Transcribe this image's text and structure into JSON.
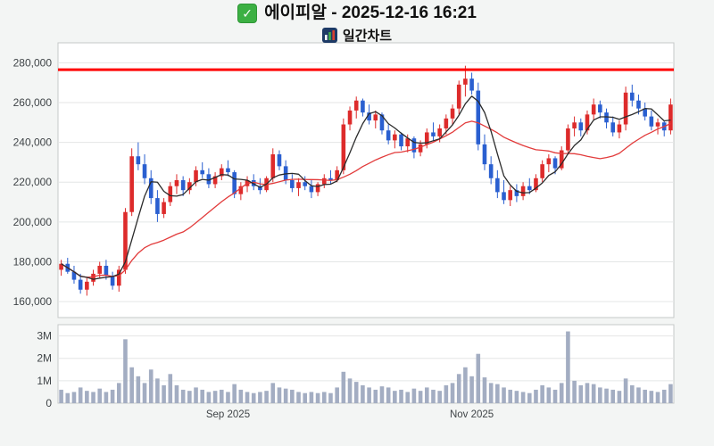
{
  "header": {
    "title": "에이피알 - 2025-12-16 16:21",
    "subtitle": "일간차트"
  },
  "icons": {
    "check_glyph": "✓",
    "bar_chart_icon_name": "bar-chart-icon"
  },
  "chart_data": {
    "type": "candlestick",
    "title": "에이피알 일간차트",
    "price_axis": {
      "min": 152000,
      "max": 290000,
      "ticks": [
        {
          "value": 280000,
          "label": "280,000"
        },
        {
          "value": 260000,
          "label": "260,000"
        },
        {
          "value": 240000,
          "label": "240,000"
        },
        {
          "value": 220000,
          "label": "220,000"
        },
        {
          "value": 200000,
          "label": "200,000"
        },
        {
          "value": 180000,
          "label": "180,000"
        },
        {
          "value": 160000,
          "label": "160,000"
        }
      ]
    },
    "volume_axis": {
      "min": 0,
      "max": 3.5,
      "unit": "M",
      "ticks": [
        {
          "value": 3,
          "label": "3M"
        },
        {
          "value": 2,
          "label": "2M"
        },
        {
          "value": 1,
          "label": "1M"
        },
        {
          "value": 0,
          "label": "0"
        }
      ]
    },
    "x_ticks": [
      {
        "index": 26,
        "label": "Sep 2025"
      },
      {
        "index": 64,
        "label": "Nov 2025"
      }
    ],
    "resistance_level": 276500,
    "moving_averages": {
      "fast_window": 5,
      "slow_window": 20
    },
    "colors": {
      "up": "#dd2b2b",
      "down": "#2a5fd0",
      "volume": "#a3adc2",
      "ma_fast": "#2b2b2b",
      "ma_slow": "#e23b3b",
      "resistance": "#ff0000",
      "grid": "#e4e6e6",
      "panel_border": "#c5c9c9",
      "panel_bg": "#ffffff",
      "axis_text": "#3f4447"
    },
    "columns": [
      "open",
      "high",
      "low",
      "close",
      "volume_millions"
    ],
    "candles": [
      [
        176000,
        181000,
        173000,
        179000,
        0.6
      ],
      [
        179000,
        182000,
        174000,
        175000,
        0.45
      ],
      [
        175000,
        178000,
        169000,
        171000,
        0.5
      ],
      [
        171000,
        174000,
        164000,
        166000,
        0.7
      ],
      [
        166000,
        172000,
        163000,
        170000,
        0.55
      ],
      [
        170000,
        176000,
        168000,
        174000,
        0.5
      ],
      [
        174000,
        180000,
        172000,
        178000,
        0.65
      ],
      [
        178000,
        181000,
        171000,
        173000,
        0.5
      ],
      [
        173000,
        175000,
        166000,
        168000,
        0.6
      ],
      [
        168000,
        178000,
        165000,
        176000,
        0.9
      ],
      [
        176000,
        207000,
        174000,
        205000,
        2.85
      ],
      [
        205000,
        237000,
        203000,
        233000,
        1.6
      ],
      [
        233000,
        240000,
        226000,
        229000,
        1.2
      ],
      [
        229000,
        234000,
        219000,
        222000,
        0.9
      ],
      [
        222000,
        226000,
        209000,
        212000,
        1.5
      ],
      [
        212000,
        216000,
        200000,
        204000,
        1.1
      ],
      [
        204000,
        212000,
        202000,
        210000,
        0.8
      ],
      [
        210000,
        220000,
        208000,
        218000,
        1.3
      ],
      [
        218000,
        224000,
        214000,
        221000,
        0.8
      ],
      [
        221000,
        223000,
        213000,
        216000,
        0.6
      ],
      [
        216000,
        222000,
        214000,
        220000,
        0.55
      ],
      [
        220000,
        228000,
        218000,
        226000,
        0.7
      ],
      [
        226000,
        230000,
        222000,
        224000,
        0.6
      ],
      [
        224000,
        227000,
        217000,
        219000,
        0.5
      ],
      [
        219000,
        225000,
        217000,
        223000,
        0.55
      ],
      [
        223000,
        229000,
        221000,
        227000,
        0.6
      ],
      [
        227000,
        231000,
        223000,
        225000,
        0.5
      ],
      [
        225000,
        226000,
        212000,
        214000,
        0.85
      ],
      [
        214000,
        220000,
        211000,
        218000,
        0.6
      ],
      [
        218000,
        223000,
        215000,
        221000,
        0.5
      ],
      [
        221000,
        224000,
        216000,
        218000,
        0.45
      ],
      [
        218000,
        222000,
        214000,
        216000,
        0.5
      ],
      [
        216000,
        223000,
        215000,
        222000,
        0.55
      ],
      [
        222000,
        237000,
        220000,
        234000,
        0.9
      ],
      [
        234000,
        236000,
        226000,
        228000,
        0.7
      ],
      [
        228000,
        231000,
        219000,
        221000,
        0.65
      ],
      [
        221000,
        224000,
        215000,
        217000,
        0.6
      ],
      [
        217000,
        222000,
        213000,
        220000,
        0.5
      ],
      [
        220000,
        223000,
        216000,
        218000,
        0.45
      ],
      [
        218000,
        221000,
        212000,
        215000,
        0.5
      ],
      [
        215000,
        220000,
        213000,
        219000,
        0.45
      ],
      [
        219000,
        224000,
        217000,
        222000,
        0.5
      ],
      [
        222000,
        226000,
        219000,
        221000,
        0.45
      ],
      [
        221000,
        228000,
        220000,
        226000,
        0.7
      ],
      [
        226000,
        252000,
        224000,
        249000,
        1.4
      ],
      [
        249000,
        258000,
        246000,
        256000,
        1.1
      ],
      [
        256000,
        263000,
        252000,
        261000,
        0.95
      ],
      [
        261000,
        262000,
        253000,
        255000,
        0.8
      ],
      [
        255000,
        259000,
        249000,
        251000,
        0.7
      ],
      [
        251000,
        256000,
        247000,
        254000,
        0.6
      ],
      [
        254000,
        255000,
        244000,
        246000,
        0.75
      ],
      [
        246000,
        249000,
        239000,
        241000,
        0.7
      ],
      [
        241000,
        246000,
        237000,
        244000,
        0.55
      ],
      [
        244000,
        245000,
        236000,
        238000,
        0.6
      ],
      [
        238000,
        244000,
        235000,
        242000,
        0.5
      ],
      [
        242000,
        243000,
        232000,
        235000,
        0.65
      ],
      [
        235000,
        241000,
        233000,
        239000,
        0.55
      ],
      [
        239000,
        247000,
        237000,
        245000,
        0.7
      ],
      [
        245000,
        250000,
        241000,
        243000,
        0.6
      ],
      [
        243000,
        249000,
        240000,
        247000,
        0.55
      ],
      [
        247000,
        254000,
        244000,
        252000,
        0.8
      ],
      [
        252000,
        259000,
        249000,
        257000,
        0.9
      ],
      [
        257000,
        271000,
        254000,
        269000,
        1.3
      ],
      [
        269000,
        278500,
        263000,
        272000,
        1.6
      ],
      [
        272000,
        275000,
        264000,
        266000,
        1.2
      ],
      [
        266000,
        270000,
        236000,
        239000,
        2.2
      ],
      [
        239000,
        244000,
        226000,
        229000,
        1.15
      ],
      [
        229000,
        233000,
        219000,
        222000,
        0.9
      ],
      [
        222000,
        226000,
        212000,
        215000,
        0.85
      ],
      [
        215000,
        221000,
        209000,
        211000,
        0.7
      ],
      [
        211000,
        218000,
        208000,
        216000,
        0.6
      ],
      [
        216000,
        219000,
        210000,
        213000,
        0.55
      ],
      [
        213000,
        220000,
        211000,
        218000,
        0.5
      ],
      [
        218000,
        222000,
        214000,
        216000,
        0.45
      ],
      [
        216000,
        224000,
        215000,
        222000,
        0.6
      ],
      [
        222000,
        231000,
        220000,
        229000,
        0.8
      ],
      [
        229000,
        234000,
        225000,
        232000,
        0.7
      ],
      [
        232000,
        233000,
        224000,
        227000,
        0.6
      ],
      [
        227000,
        238000,
        226000,
        236000,
        0.9
      ],
      [
        236000,
        249000,
        234000,
        247000,
        3.2
      ],
      [
        247000,
        253000,
        243000,
        250000,
        1.0
      ],
      [
        250000,
        252000,
        243000,
        246000,
        0.8
      ],
      [
        246000,
        256000,
        244000,
        254000,
        0.9
      ],
      [
        254000,
        262000,
        251000,
        259000,
        0.85
      ],
      [
        259000,
        261000,
        252000,
        255000,
        0.7
      ],
      [
        255000,
        257000,
        247000,
        250000,
        0.65
      ],
      [
        250000,
        253000,
        243000,
        245000,
        0.6
      ],
      [
        245000,
        251000,
        242000,
        249000,
        0.55
      ],
      [
        249000,
        268000,
        246000,
        265000,
        1.1
      ],
      [
        265000,
        269000,
        258000,
        261000,
        0.8
      ],
      [
        261000,
        264000,
        254000,
        257000,
        0.7
      ],
      [
        257000,
        260000,
        251000,
        253000,
        0.6
      ],
      [
        253000,
        256000,
        246000,
        248000,
        0.55
      ],
      [
        248000,
        252000,
        244000,
        250000,
        0.5
      ],
      [
        250000,
        251000,
        243000,
        246000,
        0.6
      ],
      [
        246000,
        262000,
        244000,
        259000,
        0.85
      ]
    ]
  }
}
